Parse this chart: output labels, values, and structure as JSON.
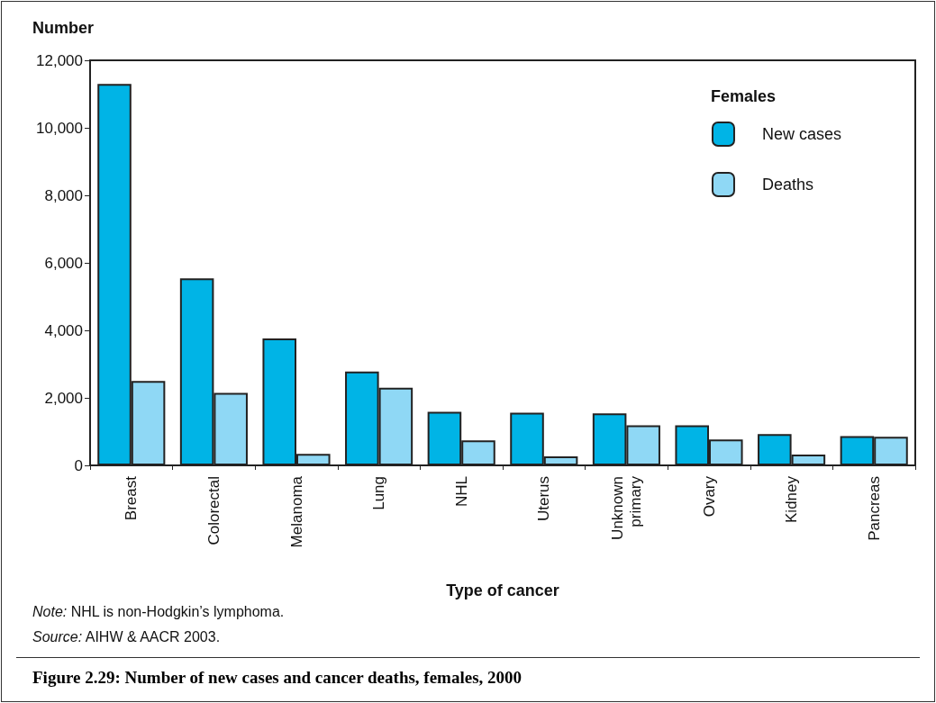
{
  "chart_data": {
    "type": "bar",
    "title": "Figure 2.29: Number of new cases and cancer deaths, females, 2000",
    "xlabel": "Type of cancer",
    "ylabel": "Number",
    "legend_title": "Females",
    "categories": [
      "Breast",
      "Colorectal",
      "Melanoma",
      "Lung",
      "NHL",
      "Uterus",
      "Unknown primary",
      "Ovary",
      "Kidney",
      "Pancreas"
    ],
    "series": [
      {
        "name": "New cases",
        "color": "#00b4e6",
        "values": [
          11300,
          5540,
          3760,
          2780,
          1590,
          1560,
          1540,
          1190,
          930,
          870
        ]
      },
      {
        "name": "Deaths",
        "color": "#8fd8f5",
        "values": [
          2500,
          2150,
          340,
          2300,
          740,
          270,
          1190,
          770,
          320,
          850
        ]
      }
    ],
    "ylim": [
      0,
      12000
    ],
    "yticks": [
      0,
      {
        "value": 2000,
        "label": "2,000"
      },
      {
        "value": 4000,
        "label": "4,000"
      },
      {
        "value": 6000,
        "label": "6,000"
      },
      {
        "value": 8000,
        "label": "8,000"
      },
      {
        "value": 10000,
        "label": "10,000"
      },
      {
        "value": 12000,
        "label": "12,000"
      }
    ],
    "grid": false,
    "legend": "top right",
    "annotations": [
      "Note: NHL is non-Hodgkin’s lymphoma.",
      "Source: AIHW & AACR 2003."
    ]
  }
}
